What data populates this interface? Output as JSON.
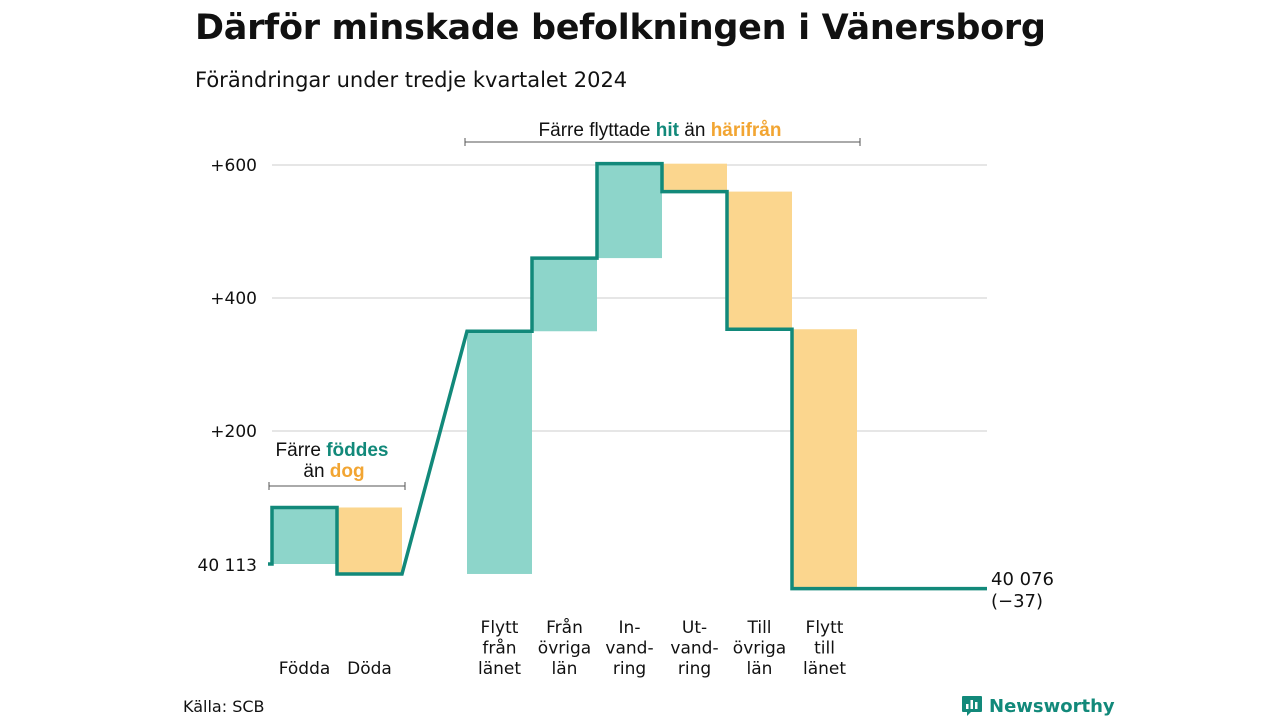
{
  "title": "Därför minskade befolkningen i Vänersborg",
  "subtitle": "Förändringar under tredje kvartalet 2024",
  "source": "Källa: SCB",
  "brand": {
    "name": "Newsworthy",
    "logo_icon": "bar-chart-icon"
  },
  "colors": {
    "increase_fill": "#8dd5ca",
    "decrease_fill": "#fbd68e",
    "line": "#12897a",
    "teal_text": "#12897a",
    "orange_text": "#f2a532",
    "grid": "#dddddd"
  },
  "annotations": {
    "births": {
      "line1_pre": "Färre ",
      "line1_hl": "föddes",
      "line2_pre": "än ",
      "line2_hl": "dog"
    },
    "migration": {
      "pre": "Färre flyttade ",
      "hl1": "hit",
      "mid": " än ",
      "hl2": "härifrån"
    }
  },
  "start_label": "40 113",
  "end_label_line1": "40 076",
  "end_label_line2": "(−37)",
  "y_tick_labels": [
    "+200",
    "+400",
    "+600"
  ],
  "chart_data": {
    "type": "waterfall",
    "title": "Därför minskade befolkningen i Vänersborg",
    "subtitle": "Förändringar under tredje kvartalet 2024",
    "start_value": 40113,
    "end_value": 40076,
    "net_change": -37,
    "y_relative_ticks": [
      200,
      400,
      600
    ],
    "grid": true,
    "categories": [
      {
        "label_lines": [
          "Födda"
        ],
        "change": 85,
        "type": "increase"
      },
      {
        "label_lines": [
          "Döda"
        ],
        "change": -100,
        "type": "decrease"
      },
      {
        "label_lines": [
          "Flytt",
          "från",
          "länet"
        ],
        "change": 365,
        "type": "increase"
      },
      {
        "label_lines": [
          "Från",
          "övriga",
          "län"
        ],
        "change": 110,
        "type": "increase"
      },
      {
        "label_lines": [
          "In-",
          "vand-",
          "ring"
        ],
        "change": 142,
        "type": "increase"
      },
      {
        "label_lines": [
          "Ut-",
          "vand-",
          "ring"
        ],
        "change": -42,
        "type": "decrease"
      },
      {
        "label_lines": [
          "Till",
          "övriga",
          "län"
        ],
        "change": -207,
        "type": "decrease"
      },
      {
        "label_lines": [
          "Flytt",
          "till",
          "länet"
        ],
        "change": -390,
        "type": "decrease"
      }
    ]
  }
}
